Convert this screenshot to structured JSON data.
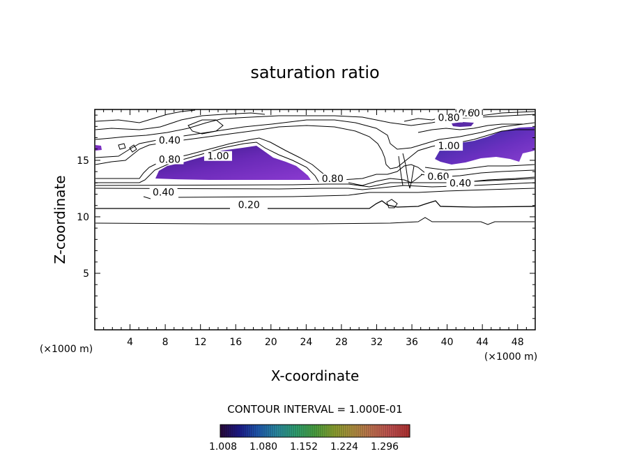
{
  "chart_data": {
    "type": "contour",
    "title": "saturation ratio",
    "xlabel": "X-coordinate",
    "ylabel": "Z-coordinate",
    "x_unit": "(×1000 m)",
    "y_unit": "(×1000 m)",
    "xlim": [
      0,
      50
    ],
    "ylim": [
      0,
      19.5
    ],
    "x_ticks": [
      4,
      8,
      12,
      16,
      20,
      24,
      28,
      32,
      36,
      40,
      44,
      48
    ],
    "x_tick_labels": [
      "4",
      "8",
      "12",
      "16",
      "20",
      "24",
      "28",
      "32",
      "36",
      "40",
      "44",
      "48"
    ],
    "y_ticks": [
      5,
      10,
      15
    ],
    "y_tick_labels": [
      "5",
      "10",
      "15"
    ],
    "grid": false,
    "contour_interval_text": "CONTOUR INTERVAL = 1.000E-01",
    "contour_labels": [
      {
        "text": "0.20",
        "x": 17.5,
        "z": 10.9
      },
      {
        "text": "0.40",
        "x": 7.8,
        "z": 12.0
      },
      {
        "text": "0.80",
        "x": 27.0,
        "z": 13.2
      },
      {
        "text": "0.40",
        "x": 8.5,
        "z": 16.6
      },
      {
        "text": "1.00",
        "x": 14.0,
        "z": 15.2
      },
      {
        "text": "0.80",
        "x": 8.5,
        "z": 14.9
      },
      {
        "text": "0.60",
        "x": 42.5,
        "z": 19.0
      },
      {
        "text": "0.80",
        "x": 40.2,
        "z": 18.6
      },
      {
        "text": "1.00",
        "x": 40.2,
        "z": 16.1
      },
      {
        "text": "0.60",
        "x": 39.0,
        "z": 13.4
      },
      {
        "text": "0.40",
        "x": 41.5,
        "z": 12.8
      }
    ],
    "colorbar": {
      "tick_labels": [
        "1.008",
        "1.080",
        "1.152",
        "1.224",
        "1.296"
      ],
      "colors": [
        "#2a0a3a",
        "#1c1a8a",
        "#1f5ab0",
        "#2a8aa0",
        "#2fa070",
        "#4aa040",
        "#8aa030",
        "#b09040",
        "#c07050",
        "#c05050",
        "#b03030"
      ]
    },
    "shaded_region_color": "#7a2ec0"
  }
}
